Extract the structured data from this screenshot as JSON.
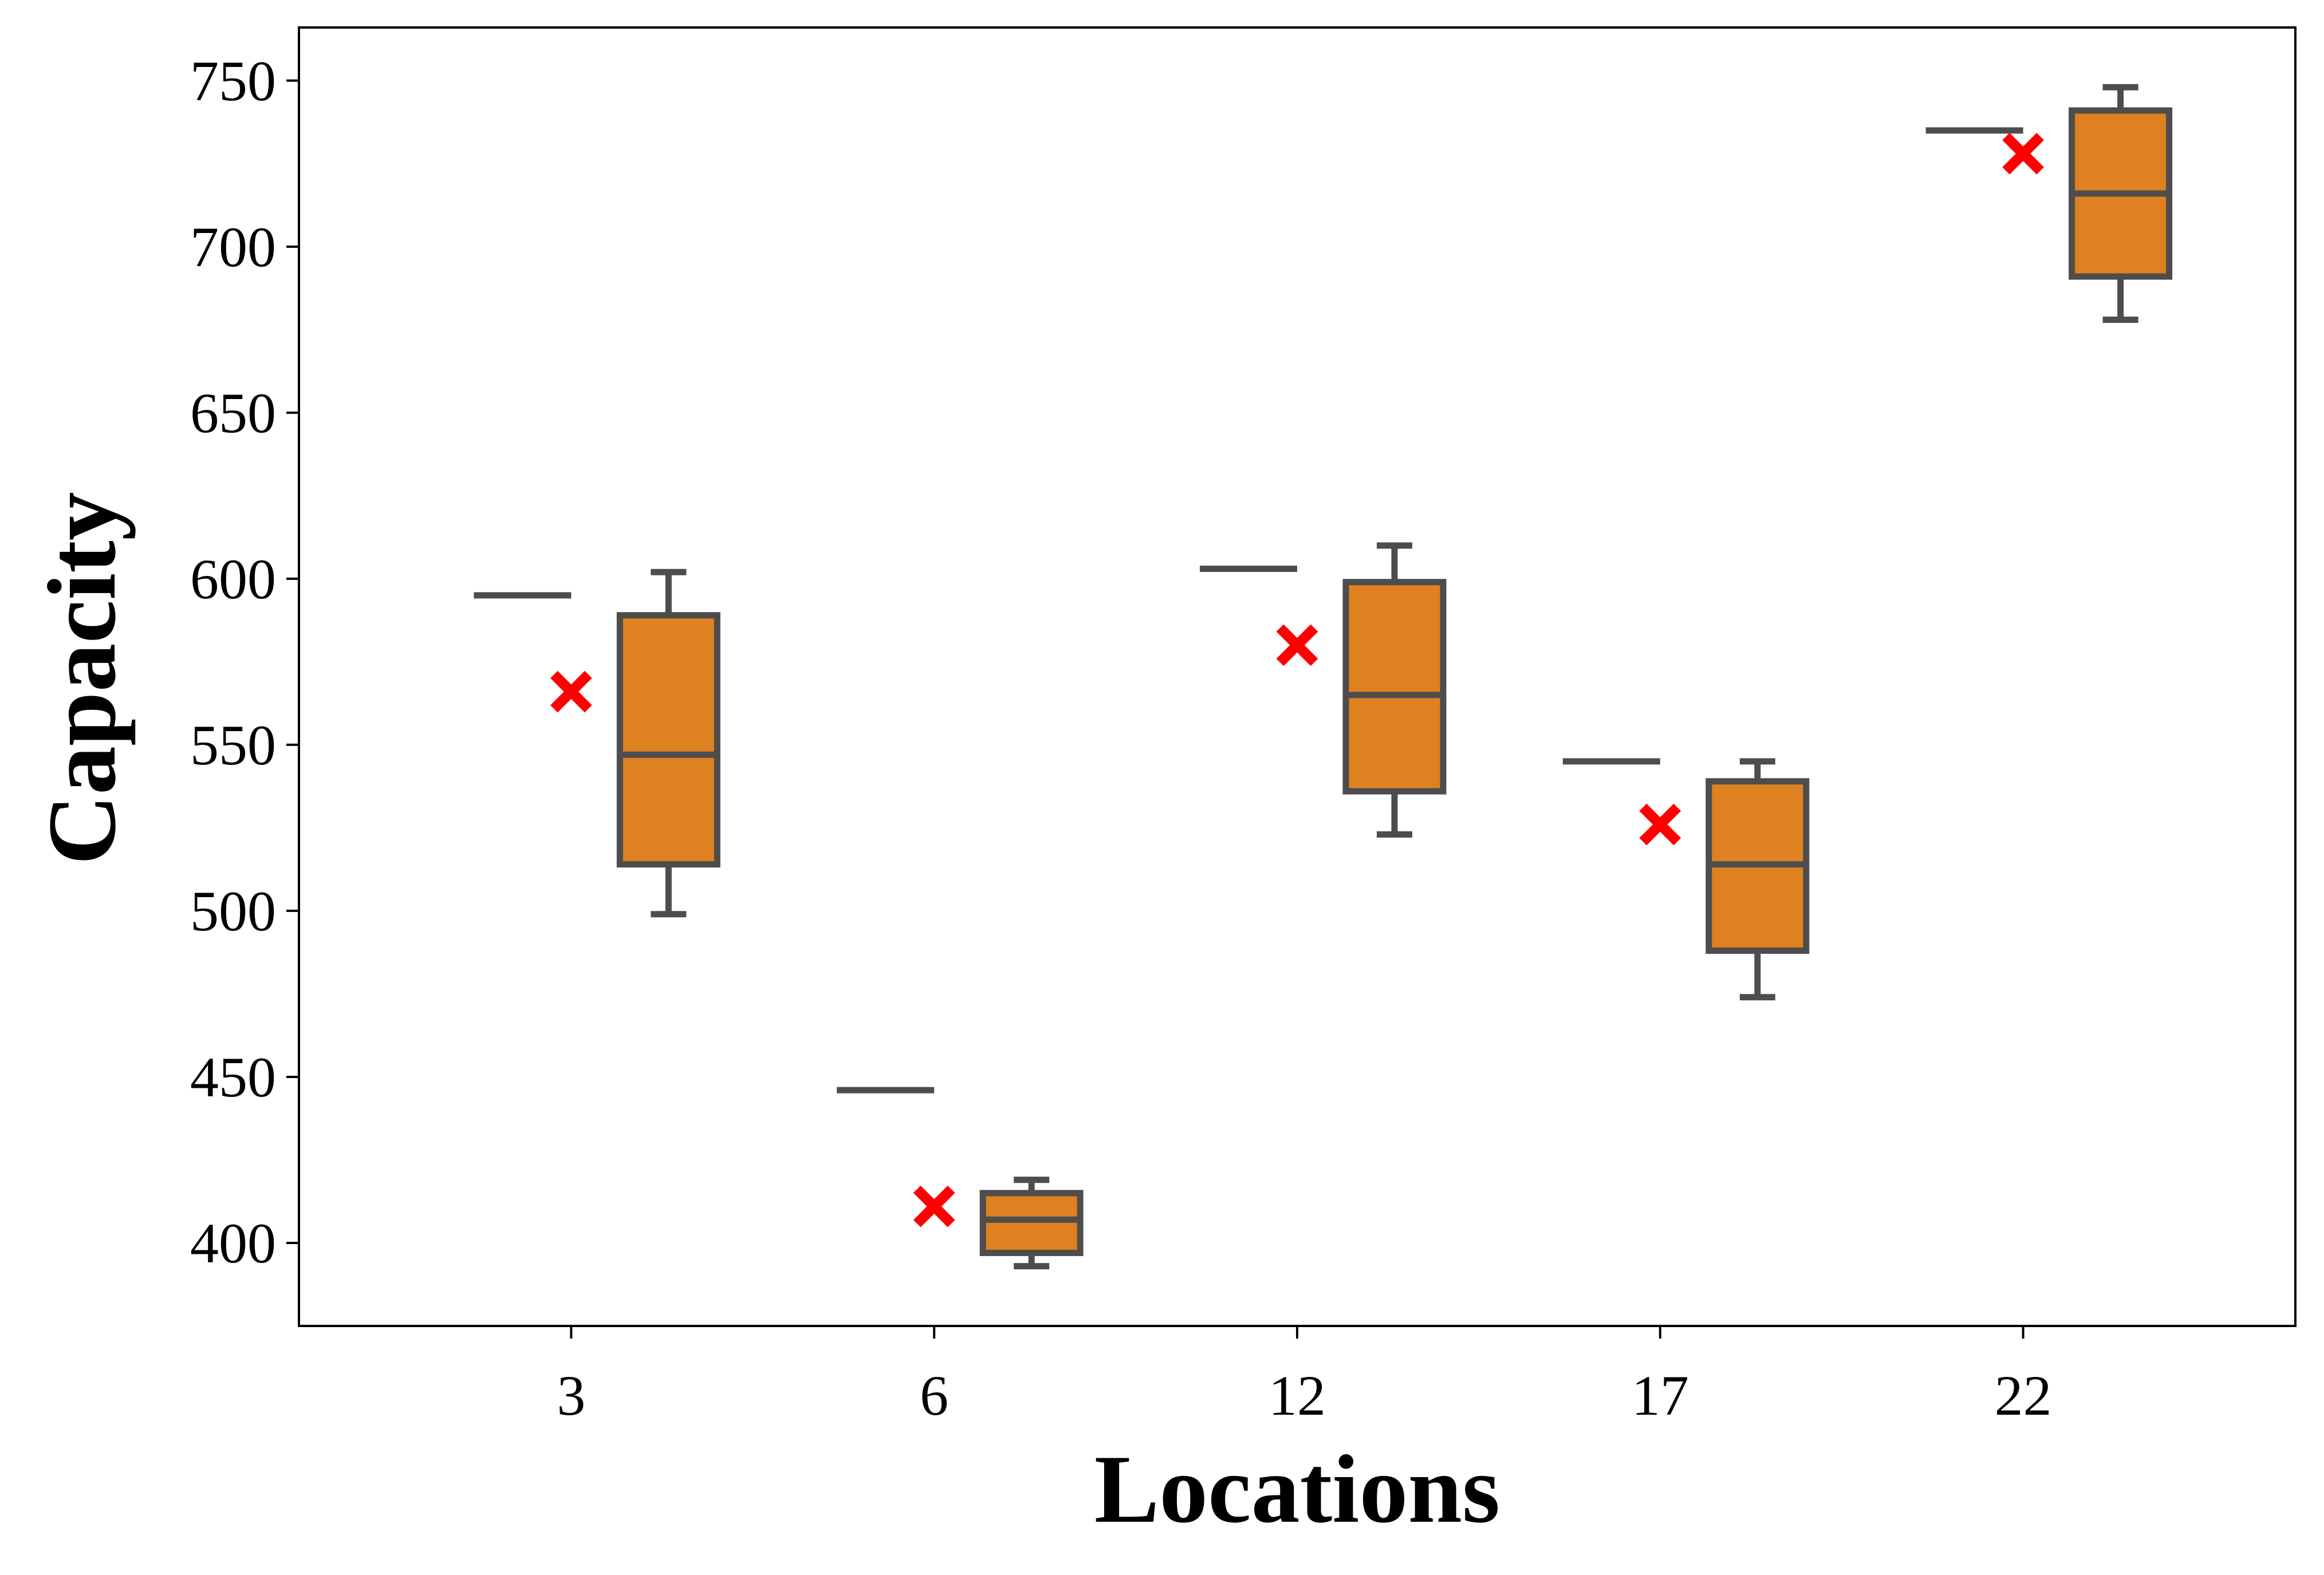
{
  "chart_data": {
    "type": "box",
    "xlabel": "Locations",
    "ylabel": "Capacity",
    "categories": [
      "3",
      "6",
      "12",
      "17",
      "22"
    ],
    "ylim": [
      375,
      766
    ],
    "yticks": [
      400,
      450,
      500,
      550,
      600,
      650,
      700,
      750
    ],
    "grid": false,
    "boxes": [
      {
        "category": "3",
        "whisker_low": 499,
        "q1": 514,
        "median": 547,
        "q3": 589,
        "whisker_high": 602,
        "reference": 595,
        "mean_marker": 566
      },
      {
        "category": "6",
        "whisker_low": 393,
        "q1": 397,
        "median": 407,
        "q3": 415,
        "whisker_high": 419,
        "reference": 446,
        "mean_marker": 411
      },
      {
        "category": "12",
        "whisker_low": 523,
        "q1": 536,
        "median": 565,
        "q3": 599,
        "whisker_high": 610,
        "reference": 603,
        "mean_marker": 580
      },
      {
        "category": "17",
        "whisker_low": 474,
        "q1": 488,
        "median": 514,
        "q3": 539,
        "whisker_high": 545,
        "reference": 545,
        "mean_marker": 526
      },
      {
        "category": "22",
        "whisker_low": 678,
        "q1": 691,
        "median": 716,
        "q3": 741,
        "whisker_high": 748,
        "reference": 735,
        "mean_marker": 728
      }
    ],
    "colors": {
      "box_fill": "#DF8120",
      "box_edge": "#4D4D4D",
      "marker": "#FF0000",
      "frame": "#000000"
    }
  }
}
